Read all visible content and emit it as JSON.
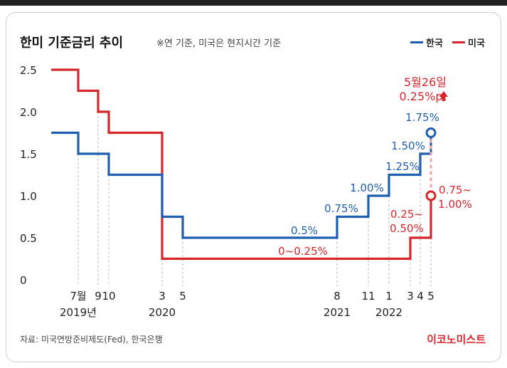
{
  "header": {
    "title": "한미 기준금리 추이",
    "note": "※연 기준, 미국은 현지시간 기준"
  },
  "legend": [
    {
      "name": "한국",
      "color": "#1f5fb0"
    },
    {
      "name": "미국",
      "color": "#d6262b"
    }
  ],
  "footer": {
    "source": "자료: 미국연방준비제도(Fed), 한국은행",
    "brand": "이코노미스트"
  },
  "chart_data": {
    "type": "line",
    "step": true,
    "title": "한미 기준금리 추이",
    "ylim": [
      0,
      2.5
    ],
    "yticks": [
      "0",
      "0.5",
      "1.0",
      "1.5",
      "2.0",
      "2.5"
    ],
    "xtick_labels": [
      {
        "label": "7월",
        "date": "2019-07",
        "year": "2019년"
      },
      {
        "label": "9",
        "date": "2019-09"
      },
      {
        "label": "10",
        "date": "2019-10"
      },
      {
        "label": "3",
        "date": "2020-03",
        "year": "2020"
      },
      {
        "label": "5",
        "date": "2020-05"
      },
      {
        "label": "8",
        "date": "2021-08",
        "year": "2021"
      },
      {
        "label": "11",
        "date": "2021-11"
      },
      {
        "label": "1",
        "date": "2022-01",
        "year": "2022"
      },
      {
        "label": "3",
        "date": "2022-03"
      },
      {
        "label": "4",
        "date": "2022-04"
      },
      {
        "label": "5",
        "date": "2022-05"
      }
    ],
    "series": [
      {
        "name": "한국",
        "color": "#1f5fb0",
        "steps": [
          {
            "date": "2019-01",
            "value": 1.75
          },
          {
            "date": "2019-07",
            "value": 1.5
          },
          {
            "date": "2019-10",
            "value": 1.25
          },
          {
            "date": "2020-03",
            "value": 0.75
          },
          {
            "date": "2020-05",
            "value": 0.5
          },
          {
            "date": "2021-08",
            "value": 0.75
          },
          {
            "date": "2021-11",
            "value": 1.0
          },
          {
            "date": "2022-01",
            "value": 1.25
          },
          {
            "date": "2022-04",
            "value": 1.5
          },
          {
            "date": "2022-05",
            "value": 1.75
          }
        ],
        "labels": [
          "0.5%",
          "0.75%",
          "1.00%",
          "1.25%",
          "1.50%",
          "1.75%"
        ]
      },
      {
        "name": "미국",
        "color": "#d6262b",
        "steps": [
          {
            "date": "2019-01",
            "value": 2.5
          },
          {
            "date": "2019-07",
            "value": 2.25
          },
          {
            "date": "2019-09",
            "value": 2.0
          },
          {
            "date": "2019-10",
            "value": 1.75
          },
          {
            "date": "2020-03",
            "value": 0.25
          },
          {
            "date": "2022-03",
            "value": 0.5
          },
          {
            "date": "2022-05",
            "value": 1.0
          }
        ],
        "labels": [
          "0~0.25%",
          "0.25~\n0.50%",
          "0.75~\n1.00%"
        ]
      }
    ],
    "annotation": {
      "line1": "5월26일",
      "line2": "0.25%p",
      "arrow": "up-arrow-icon"
    }
  }
}
